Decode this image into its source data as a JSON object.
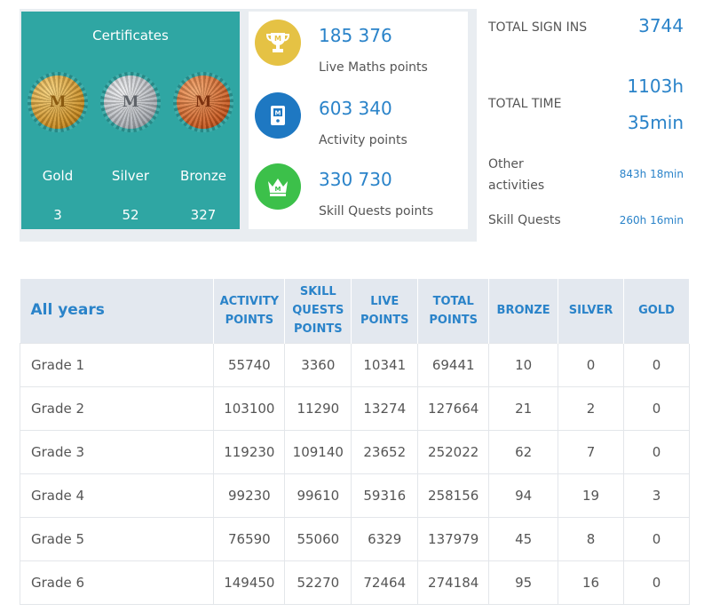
{
  "certificates": {
    "title": "Certificates",
    "medals": [
      {
        "key": "gold",
        "label": "Gold",
        "count": "3",
        "letter": "M"
      },
      {
        "key": "silver",
        "label": "Silver",
        "count": "52",
        "letter": "M"
      },
      {
        "key": "bronze",
        "label": "Bronze",
        "count": "327",
        "letter": "M"
      }
    ]
  },
  "points": [
    {
      "value": "185 376",
      "label": "Live Maths points",
      "icon": "trophy-icon",
      "color": "#e5c244"
    },
    {
      "value": "603 340",
      "label": "Activity points",
      "icon": "activity-icon",
      "color": "#1e78c2"
    },
    {
      "value": "330 730",
      "label": "Skill Quests points",
      "icon": "crown-icon",
      "color": "#3cc04a"
    }
  ],
  "stats": {
    "total_sign_ins_label": "TOTAL SIGN INS",
    "total_sign_ins_value": "3744",
    "total_time_label": "TOTAL TIME",
    "total_time_hours": "1103h",
    "total_time_minutes": "35min",
    "other_activities_label_1": "Other",
    "other_activities_label_2": "activities",
    "other_activities_value": "843h 18min",
    "skill_quests_label": "Skill Quests",
    "skill_quests_value": "260h 16min"
  },
  "table": {
    "header_all_years": "All years",
    "headers": [
      [
        "ACTIVITY",
        "POINTS"
      ],
      [
        "SKILL",
        "QUESTS",
        "POINTS"
      ],
      [
        "LIVE",
        "POINTS"
      ],
      [
        "TOTAL",
        "POINTS"
      ],
      [
        "BRONZE"
      ],
      [
        "SILVER"
      ],
      [
        "GOLD"
      ]
    ],
    "rows": [
      [
        "Grade 1",
        "55740",
        "3360",
        "10341",
        "69441",
        "10",
        "0",
        "0"
      ],
      [
        "Grade 2",
        "103100",
        "11290",
        "13274",
        "127664",
        "21",
        "2",
        "0"
      ],
      [
        "Grade 3",
        "119230",
        "109140",
        "23652",
        "252022",
        "62",
        "7",
        "0"
      ],
      [
        "Grade 4",
        "99230",
        "99610",
        "59316",
        "258156",
        "94",
        "19",
        "3"
      ],
      [
        "Grade 5",
        "76590",
        "55060",
        "6329",
        "137979",
        "45",
        "8",
        "0"
      ],
      [
        "Grade 6",
        "149450",
        "52270",
        "72464",
        "274184",
        "95",
        "16",
        "0"
      ]
    ]
  }
}
